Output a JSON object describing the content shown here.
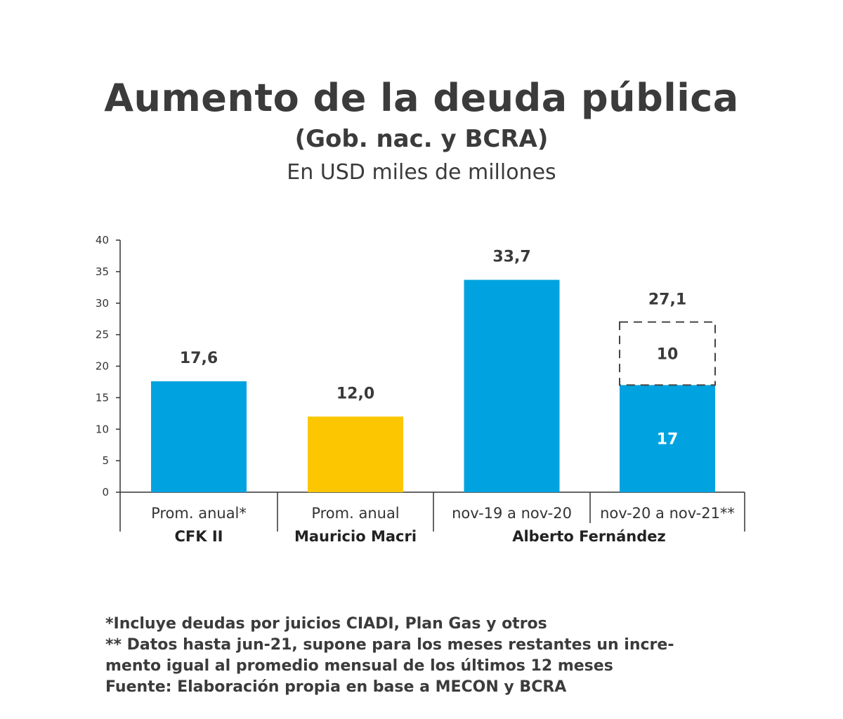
{
  "chart_data": {
    "type": "bar",
    "title": "Aumento de la deuda pública",
    "subtitle": "(Gob. nac. y BCRA)",
    "unit_label": "En USD miles de millones",
    "ylim": [
      0,
      40
    ],
    "yticks": [
      "0",
      "5",
      "10",
      "15",
      "20",
      "25",
      "30",
      "35",
      "40"
    ],
    "categories": [
      "Prom. anual*",
      "Prom. anual",
      "nov-19 a nov-20",
      "nov-20 a nov-21**"
    ],
    "groups": [
      {
        "label": "CFK II",
        "span": [
          0,
          0
        ]
      },
      {
        "label": "Mauricio Macri",
        "span": [
          1,
          1
        ]
      },
      {
        "label": "Alberto Fernández",
        "span": [
          2,
          3
        ]
      }
    ],
    "values": [
      17.6,
      12.0,
      33.7,
      27.1
    ],
    "value_labels": [
      "17,6",
      "12,0",
      "33,7",
      "27,1"
    ],
    "stacked_last": {
      "base_value": 17,
      "base_label": "17",
      "projected_value": 10,
      "projected_label": "10",
      "projected_style": "dashed-outline"
    },
    "colors": [
      "#00a3e0",
      "#fcc600",
      "#00a3e0",
      "#00a3e0"
    ],
    "grid": false,
    "legend": "none"
  },
  "footnotes": [
    "*Incluye deudas por juicios CIADI, Plan Gas y otros",
    "** Datos hasta jun-21, supone para los meses restantes un incre-",
    "mento igual al promedio mensual de los últimos 12 meses",
    "Fuente: Elaboración propia en base a MECON y BCRA"
  ]
}
